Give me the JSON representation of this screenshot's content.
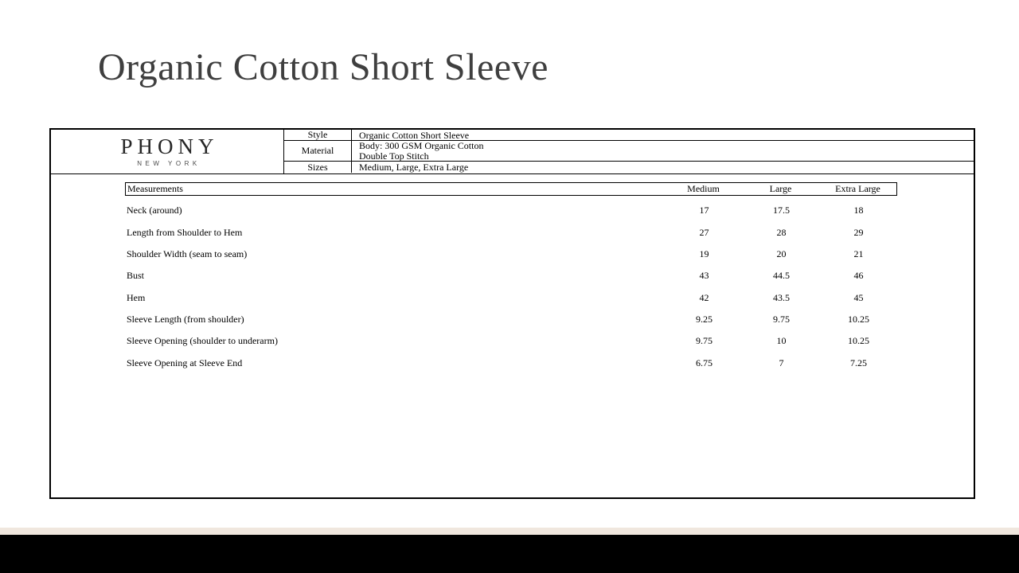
{
  "title": "Organic Cotton Short Sleeve",
  "brand": {
    "name": "PHONY",
    "city": "NEW YORK"
  },
  "product_info": {
    "style_label": "Style",
    "style_value": "Organic Cotton Short Sleeve",
    "material_label": "Material",
    "material_line1": "Body: 300 GSM Organic Cotton",
    "material_line2": "Double Top Stitch",
    "sizes_label": "Sizes",
    "sizes_value": "Medium, Large, Extra Large"
  },
  "size_chart": {
    "header_label": "Measurements",
    "columns": [
      "Medium",
      "Large",
      "Extra Large"
    ],
    "rows": [
      {
        "label": "Neck (around)",
        "medium": "17",
        "large": "17.5",
        "extra_large": "18"
      },
      {
        "label": "Length from Shoulder to Hem",
        "medium": "27",
        "large": "28",
        "extra_large": "29"
      },
      {
        "label": "Shoulder Width (seam to seam)",
        "medium": "19",
        "large": "20",
        "extra_large": "21"
      },
      {
        "label": "Bust",
        "medium": "43",
        "large": "44.5",
        "extra_large": "46"
      },
      {
        "label": "Hem",
        "medium": "42",
        "large": "43.5",
        "extra_large": "45"
      },
      {
        "label": "Sleeve Length (from shoulder)",
        "medium": "9.25",
        "large": "9.75",
        "extra_large": "10.25"
      },
      {
        "label": "Sleeve Opening (shoulder to underarm)",
        "medium": "9.75",
        "large": "10",
        "extra_large": "10.25"
      },
      {
        "label": "Sleeve Opening at Sleeve End",
        "medium": "6.75",
        "large": "7",
        "extra_large": "7.25"
      }
    ]
  },
  "colors": {
    "title_text": "#3f3f3f",
    "table_text": "#000000",
    "border": "#000000",
    "footer_bar": "#000000",
    "accent_strip": "#f0e7de",
    "background": "#ffffff"
  }
}
